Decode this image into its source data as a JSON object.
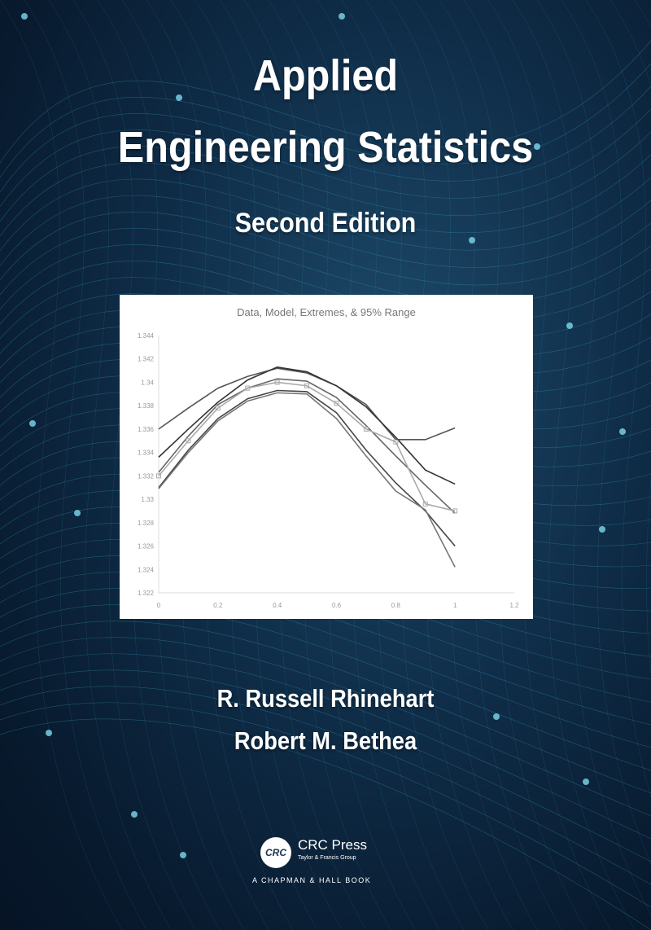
{
  "cover": {
    "title_line1": "Applied",
    "title_line2": "Engineering Statistics",
    "edition": "Second Edition",
    "authors": [
      "R. Russell Rhinehart",
      "Robert M. Bethea"
    ],
    "publisher": {
      "logo_text": "CRC",
      "name": "CRC Press",
      "subtitle": "Taylor & Francis Group",
      "imprint": "A CHAPMAN & HALL BOOK"
    },
    "colors": {
      "background": "#0f2c47",
      "mesh": "#3fb6d6",
      "text": "#ffffff"
    }
  },
  "chart_data": {
    "type": "line",
    "title": "Data, Model, Extremes, & 95% Range",
    "xlabel": "",
    "ylabel": "",
    "xlim": [
      0,
      1.2
    ],
    "ylim": [
      1.322,
      1.344
    ],
    "xticks": [
      "0",
      "0.2",
      "0.4",
      "0.6",
      "0.8",
      "1",
      "1.2"
    ],
    "yticks": [
      "1.322",
      "1.324",
      "1.326",
      "1.328",
      "1.33",
      "1.332",
      "1.334",
      "1.336",
      "1.338",
      "1.34",
      "1.342",
      "1.344"
    ],
    "grid": false,
    "legend": "none",
    "x": [
      0,
      0.1,
      0.2,
      0.3,
      0.4,
      0.5,
      0.6,
      0.7,
      0.8,
      0.9,
      1.0
    ],
    "series": [
      {
        "values": [
          1.336,
          1.3378,
          1.3395,
          1.3405,
          1.3412,
          1.3408,
          1.3397,
          1.3381,
          1.3351,
          1.3351,
          1.3361
        ],
        "color": "#555555",
        "markers": false
      },
      {
        "values": [
          1.3336,
          1.336,
          1.3383,
          1.3402,
          1.3413,
          1.3409,
          1.3397,
          1.3379,
          1.3353,
          1.3325,
          1.3313
        ],
        "color": "#333333",
        "markers": false
      },
      {
        "values": [
          1.3323,
          1.3354,
          1.3381,
          1.3395,
          1.3403,
          1.3401,
          1.3387,
          1.3363,
          1.3337,
          1.3312,
          1.3288
        ],
        "color": "#666666",
        "markers": false
      },
      {
        "values": [
          1.332,
          1.335,
          1.3378,
          1.3395,
          1.34,
          1.3397,
          1.3382,
          1.336,
          1.3349,
          1.3296,
          1.329
        ],
        "color": "#aaaaaa",
        "markers": true
      },
      {
        "values": [
          1.331,
          1.3342,
          1.3369,
          1.3386,
          1.3393,
          1.3392,
          1.3374,
          1.3342,
          1.3314,
          1.329,
          1.326
        ],
        "color": "#444444",
        "markers": false
      },
      {
        "values": [
          1.3309,
          1.334,
          1.3367,
          1.3384,
          1.3391,
          1.339,
          1.3369,
          1.3337,
          1.3307,
          1.3291,
          1.3242
        ],
        "color": "#777777",
        "markers": false
      }
    ]
  }
}
